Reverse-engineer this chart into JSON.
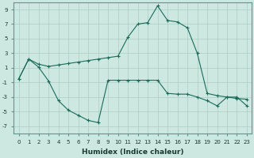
{
  "xlabel": "Humidex (Indice chaleur)",
  "ylabel": "",
  "background_color": "#cce8e0",
  "grid_color": "#aaccC4",
  "line_color": "#1a6b5a",
  "x": [
    0,
    1,
    2,
    3,
    4,
    5,
    6,
    7,
    8,
    9,
    10,
    11,
    12,
    13,
    14,
    15,
    16,
    17,
    18,
    19,
    20,
    21,
    22,
    23
  ],
  "line1": [
    -0.5,
    2.2,
    1.5,
    1.2,
    1.4,
    1.6,
    1.8,
    2.0,
    2.2,
    2.4,
    2.6,
    5.2,
    7.0,
    7.2,
    9.5,
    7.5,
    7.3,
    6.5,
    3.0,
    -2.5,
    -2.8,
    -3.0,
    -3.2,
    -3.3
  ],
  "line2": [
    -0.5,
    2.2,
    1.1,
    -0.8,
    -3.5,
    -4.8,
    -5.5,
    -6.2,
    -6.5,
    -0.7,
    -0.7,
    -0.7,
    -0.7,
    -0.7,
    -0.7,
    -2.5,
    -2.6,
    -2.6,
    -3.0,
    -3.5,
    -4.2,
    -3.0,
    -3.0,
    -4.2
  ],
  "ylim": [
    -8,
    10
  ],
  "xlim": [
    -0.5,
    23.5
  ],
  "yticks": [
    -7,
    -5,
    -3,
    -1,
    1,
    3,
    5,
    7,
    9
  ],
  "xticks": [
    0,
    1,
    2,
    3,
    4,
    5,
    6,
    7,
    8,
    9,
    10,
    11,
    12,
    13,
    14,
    15,
    16,
    17,
    18,
    19,
    20,
    21,
    22,
    23
  ],
  "tick_fontsize": 5.0,
  "label_fontsize": 6.5,
  "figwidth": 3.2,
  "figheight": 2.0,
  "dpi": 100
}
